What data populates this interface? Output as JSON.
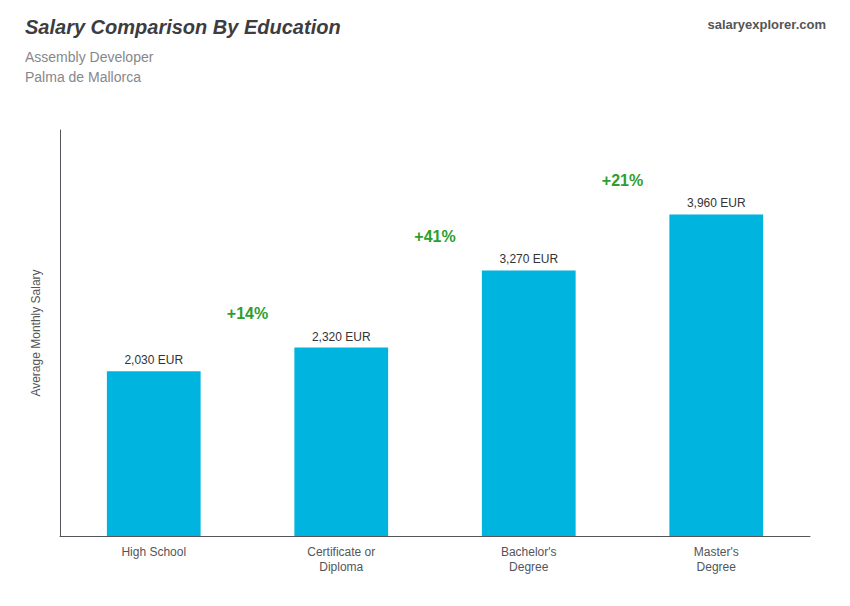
{
  "chart_data": {
    "type": "bar",
    "title": "Salary Comparison By Education",
    "subtitle": [
      "Assembly Developer",
      "Palma de Mallorca"
    ],
    "ylabel": "Average Monthly Salary",
    "categories": [
      "High School",
      "Certificate or\nDiploma",
      "Bachelor's\nDegree",
      "Master's\nDegree"
    ],
    "values": [
      2030,
      2320,
      3270,
      3960
    ],
    "value_labels": [
      "2,030 EUR",
      "2,320 EUR",
      "3,270 EUR",
      "3,960 EUR"
    ],
    "data_labels": true,
    "annotations": [
      "+14%",
      "+41%",
      "+21%"
    ],
    "watermark": "salaryexplorer.com",
    "color": "#00b4e0",
    "ylim": [
      0,
      5000
    ],
    "grid": false,
    "tick_labels": "x"
  }
}
